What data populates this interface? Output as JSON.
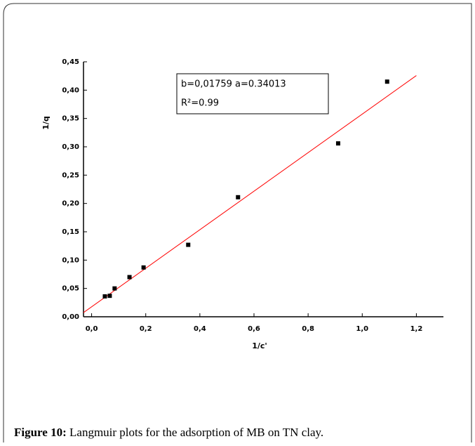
{
  "chart_data": {
    "type": "scatter",
    "x": [
      0.049,
      0.067,
      0.085,
      0.14,
      0.192,
      0.357,
      0.541,
      0.911,
      1.092
    ],
    "values": [
      0.036,
      0.037,
      0.05,
      0.07,
      0.087,
      0.127,
      0.211,
      0.306,
      0.415
    ],
    "color": "#000000",
    "fit": {
      "intercept": 0.01759,
      "slope": 0.34013,
      "x": [
        -0.03,
        1.2
      ],
      "color": "#ff0000"
    },
    "xlabel": "1/c'",
    "ylabel": "1/q",
    "annotation": [
      "b=0,01759 a=0.34013",
      "R²=0.99"
    ],
    "xlim": [
      -0.03,
      1.3
    ],
    "ylim": [
      0,
      0.45
    ],
    "xticks": [
      {
        "value": 0,
        "label": "0,0"
      },
      {
        "value": 0.2,
        "label": "0,2"
      },
      {
        "value": 0.4,
        "label": "0,4"
      },
      {
        "value": 0.6,
        "label": "0,6"
      },
      {
        "value": 0.8,
        "label": "0,8"
      },
      {
        "value": 1.0,
        "label": "1,0"
      },
      {
        "value": 1.2,
        "label": "1,2"
      }
    ],
    "yticks": [
      {
        "value": 0,
        "label": "0,00"
      },
      {
        "value": 0.05,
        "label": "0,05"
      },
      {
        "value": 0.1,
        "label": "0,10"
      },
      {
        "value": 0.15,
        "label": "0,15"
      },
      {
        "value": 0.2,
        "label": "0,20"
      },
      {
        "value": 0.25,
        "label": "0,25"
      },
      {
        "value": 0.3,
        "label": "0,30"
      },
      {
        "value": 0.35,
        "label": "0,35"
      },
      {
        "value": 0.4,
        "label": "0,40"
      },
      {
        "value": 0.45,
        "label": "0,45"
      }
    ]
  },
  "caption": {
    "label": "Figure 10:",
    "text": " Langmuir plots for the adsorption of MB on TN clay."
  }
}
